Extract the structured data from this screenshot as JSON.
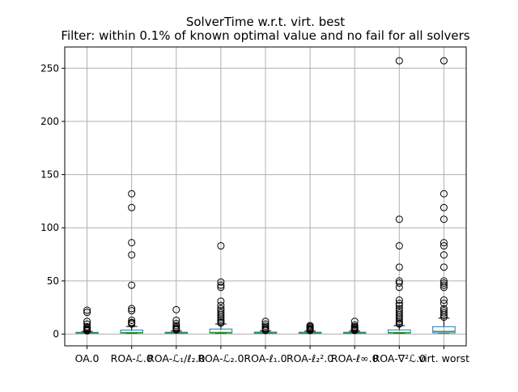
{
  "chart_data": {
    "type": "box",
    "title_line1": "SolverTime w.r.t. virt. best",
    "title_line2": "Filter: within 0.1% of known optimal value and no fail for all solvers",
    "xlabel": "",
    "ylabel": "",
    "ylim": [
      -11,
      270
    ],
    "yticks": [
      0,
      50,
      100,
      150,
      200,
      250
    ],
    "grid": true,
    "colors": {
      "box": "#1f77b4",
      "median": "#2ca02c",
      "whisker": "#000000",
      "flier": "#000000",
      "grid": "#b0b0b0"
    },
    "categories": [
      "OA.0",
      "ROA-ℒ.0",
      "ROA-ℒ₁/ℓ₂.0",
      "ROA-ℒ₂.0",
      "ROA-ℓ₁.0",
      "ROA-ℓ₂².0",
      "ROA-ℓ∞.0",
      "ROA-∇²ℒ.0",
      "virt. worst"
    ],
    "boxes": [
      {
        "q1": 0.9,
        "median": 1.1,
        "q3": 1.7,
        "whislo": 0.8,
        "whishi": 2.6,
        "fliers": [
          22.5,
          20.5,
          12,
          9.5,
          7,
          6,
          5,
          4.2,
          3.6,
          3.1
        ]
      },
      {
        "q1": 1.0,
        "median": 1.5,
        "q3": 3.8,
        "whislo": 0.8,
        "whishi": 7.2,
        "fliers": [
          132,
          119,
          86,
          74.5,
          46,
          24,
          22,
          13,
          11,
          10.5,
          9.5
        ]
      },
      {
        "q1": 0.9,
        "median": 1.1,
        "q3": 1.8,
        "whislo": 0.8,
        "whishi": 2.9,
        "fliers": [
          23,
          13,
          10,
          8,
          6.5,
          5.5,
          4.5,
          4
        ]
      },
      {
        "q1": 1.0,
        "median": 1.6,
        "q3": 4.8,
        "whislo": 0.8,
        "whishi": 9.5,
        "fliers": [
          83,
          49,
          46,
          44,
          31,
          27,
          24,
          22,
          20,
          18,
          16,
          14,
          12.5,
          11,
          10.5
        ]
      },
      {
        "q1": 0.9,
        "median": 1.1,
        "q3": 1.9,
        "whislo": 0.8,
        "whishi": 3.0,
        "fliers": [
          12,
          9.5,
          7.5,
          6,
          5,
          4,
          3.5
        ]
      },
      {
        "q1": 0.9,
        "median": 1.1,
        "q3": 1.8,
        "whislo": 0.8,
        "whishi": 2.8,
        "fliers": [
          8,
          7,
          6,
          5,
          4.5,
          4,
          3.5
        ]
      },
      {
        "q1": 0.9,
        "median": 1.1,
        "q3": 1.8,
        "whislo": 0.8,
        "whishi": 2.8,
        "fliers": [
          12,
          8.5,
          7,
          6,
          5,
          4.5,
          4,
          3.5
        ]
      },
      {
        "q1": 1.0,
        "median": 1.5,
        "q3": 4.0,
        "whislo": 0.8,
        "whishi": 8.0,
        "fliers": [
          257,
          108,
          83,
          63,
          50,
          48,
          44,
          32,
          29,
          27,
          24,
          22,
          20,
          18,
          16,
          14,
          12,
          10.5,
          9.5
        ]
      },
      {
        "q1": 1.2,
        "median": 2.5,
        "q3": 7.0,
        "whislo": 1.0,
        "whishi": 15,
        "fliers": [
          257,
          132,
          119,
          108,
          86,
          83,
          74.5,
          63,
          50,
          48,
          46,
          44,
          32,
          29,
          24,
          22,
          20,
          18,
          16
        ]
      }
    ]
  }
}
